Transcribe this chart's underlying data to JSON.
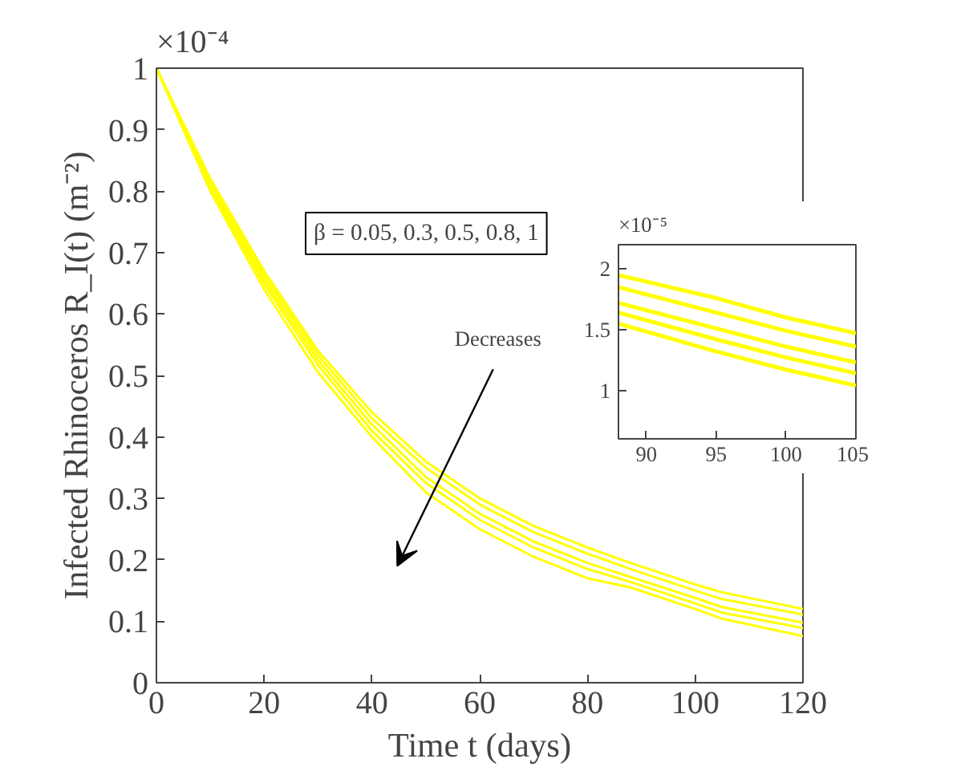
{
  "chart_data": [
    {
      "type": "line",
      "xlabel": "Time t (days)",
      "ylabel": "Infected Rhinoceros R_I(t) (m⁻²)",
      "x": [
        0,
        10,
        20,
        30,
        40,
        50,
        60,
        70,
        80,
        88,
        100,
        105,
        120
      ],
      "series": [
        {
          "color": "#ffff00",
          "values": [
            1,
            0.82,
            0.67,
            0.54,
            0.44,
            0.36,
            0.3,
            0.255,
            0.22,
            0.195,
            0.16,
            0.147,
            0.12
          ]
        },
        {
          "color": "#ffff00",
          "values": [
            1,
            0.815,
            0.663,
            0.533,
            0.43,
            0.35,
            0.29,
            0.245,
            0.21,
            0.185,
            0.15,
            0.136,
            0.111
          ]
        },
        {
          "color": "#ffff00",
          "values": [
            1,
            0.81,
            0.656,
            0.525,
            0.42,
            0.335,
            0.275,
            0.23,
            0.195,
            0.172,
            0.138,
            0.123,
            0.098
          ]
        },
        {
          "color": "#ffff00",
          "values": [
            1,
            0.805,
            0.649,
            0.517,
            0.41,
            0.325,
            0.265,
            0.22,
            0.185,
            0.164,
            0.129,
            0.114,
            0.089
          ]
        },
        {
          "color": "#ffff00",
          "values": [
            1,
            0.8,
            0.64,
            0.505,
            0.4,
            0.31,
            0.25,
            0.205,
            0.17,
            0.155,
            0.12,
            0.104,
            0.076
          ]
        }
      ],
      "xlim": [
        0,
        120
      ],
      "ylim": [
        0,
        1
      ],
      "xticks": [
        0,
        20,
        40,
        60,
        80,
        100,
        120
      ],
      "yticks": [
        0,
        0.1,
        0.2,
        0.3,
        0.4,
        0.5,
        0.6,
        0.7,
        0.8,
        0.9,
        1
      ],
      "grid": false,
      "annotations": [
        "×10⁻⁴",
        "β = 0.05, 0.3, 0.5, 0.8, 1",
        "Decreases"
      ]
    },
    {
      "type": "line",
      "x": [
        88,
        95,
        100,
        105
      ],
      "series": [
        {
          "color": "#ffff00",
          "values": [
            1.95,
            1.76,
            1.6,
            1.47
          ]
        },
        {
          "color": "#ffff00",
          "values": [
            1.85,
            1.64,
            1.49,
            1.36
          ]
        },
        {
          "color": "#ffff00",
          "values": [
            1.72,
            1.51,
            1.36,
            1.23
          ]
        },
        {
          "color": "#ffff00",
          "values": [
            1.64,
            1.42,
            1.27,
            1.14
          ]
        },
        {
          "color": "#ffff00",
          "values": [
            1.55,
            1.32,
            1.17,
            1.04
          ]
        }
      ],
      "xlim": [
        88,
        105
      ],
      "ylim": [
        0.6,
        2.2
      ],
      "xticks": [
        90,
        95,
        100,
        105
      ],
      "yticks": [
        1,
        1.5,
        2
      ],
      "grid": false,
      "annotations": [
        "×10⁻⁵"
      ]
    }
  ]
}
